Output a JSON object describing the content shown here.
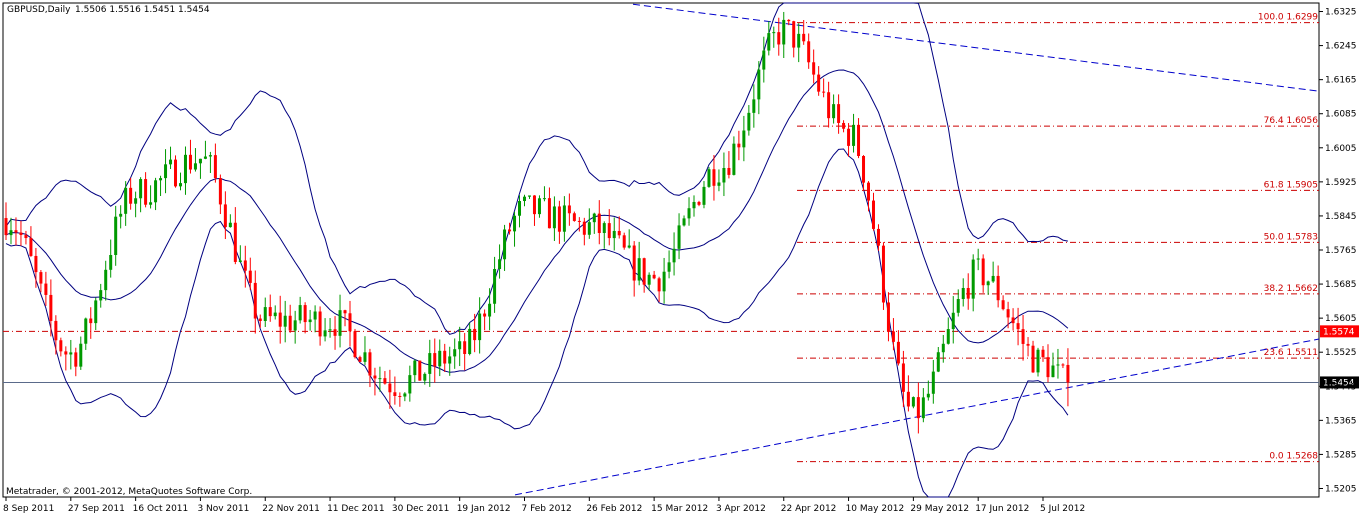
{
  "header": {
    "symbol": "GBPUSD,Daily",
    "ohlc": "1.5506 1.5516 1.5451 1.5454"
  },
  "footer": {
    "copyright": "Metatrader, © 2001-2012, MetaQuotes Software Corp."
  },
  "colors": {
    "bull": "#009900",
    "bear": "#ff0000",
    "bands": "#000080",
    "trendline": "#0000cc",
    "fib": "#cc0000",
    "axis": "#000000",
    "price_tag_bg": "#000000",
    "price_tag_fg": "#ffffff",
    "level_tag_bg": "#ff0000",
    "level_tag_fg": "#ffffff"
  },
  "chart_data": {
    "type": "candlestick",
    "title": "GBPUSD,Daily",
    "y_ticks": [
      "1.6325",
      "1.6245",
      "1.6165",
      "1.6085",
      "1.6005",
      "1.5925",
      "1.5845",
      "1.5765",
      "1.5685",
      "1.5605",
      "1.5525",
      "1.5445",
      "1.5365",
      "1.5285",
      "1.5205"
    ],
    "ylim": [
      1.5185,
      1.6345
    ],
    "x_ticks": [
      "8 Sep 2011",
      "27 Sep 2011",
      "16 Oct 2011",
      "3 Nov 2011",
      "22 Nov 2011",
      "11 Dec 2011",
      "30 Dec 2011",
      "19 Jan 2012",
      "7 Feb 2012",
      "26 Feb 2012",
      "15 Mar 2012",
      "3 Apr 2012",
      "22 Apr 2012",
      "10 May 2012",
      "29 May 2012",
      "17 Jun 2012",
      "5 Jul 2012"
    ],
    "last_price": "1.5454",
    "marked_level": "1.5574",
    "close_path": [
      [
        "8 Sep 2011",
        1.584
      ],
      [
        "27 Sep 2011",
        1.552
      ],
      [
        "16 Oct 2011",
        1.59
      ],
      [
        "3 Nov 2011",
        1.598
      ],
      [
        "22 Nov 2011",
        1.56
      ],
      [
        "11 Dec 2011",
        1.56
      ],
      [
        "30 Dec 2011",
        1.545
      ],
      [
        "19 Jan 2012",
        1.552
      ],
      [
        "7 Feb 2012",
        1.586
      ],
      [
        "26 Feb 2012",
        1.582
      ],
      [
        "15 Mar 2012",
        1.57
      ],
      [
        "3 Apr 2012",
        1.596
      ],
      [
        "22 Apr 2012",
        1.628
      ],
      [
        "10 May 2012",
        1.604
      ],
      [
        "29 May 2012",
        1.538
      ],
      [
        "17 Jun 2012",
        1.571
      ],
      [
        "5 Jul 2012",
        1.55
      ],
      [
        "12 Jul 2012",
        1.5454
      ]
    ],
    "fibonacci": [
      {
        "label": "100.0 1.6299",
        "value": 1.6299
      },
      {
        "label": "76.4 1.6056",
        "value": 1.6056
      },
      {
        "label": "61.8 1.5905",
        "value": 1.5905
      },
      {
        "label": "50.0 1.5783",
        "value": 1.5783
      },
      {
        "label": "38.2 1.5662",
        "value": 1.5662
      },
      {
        "label": "23.6 1.5511",
        "value": 1.5511
      },
      {
        "label": "0.0 1.5268",
        "value": 1.5268
      }
    ],
    "indicators": [
      "Bollinger Bands"
    ],
    "grid": false
  }
}
